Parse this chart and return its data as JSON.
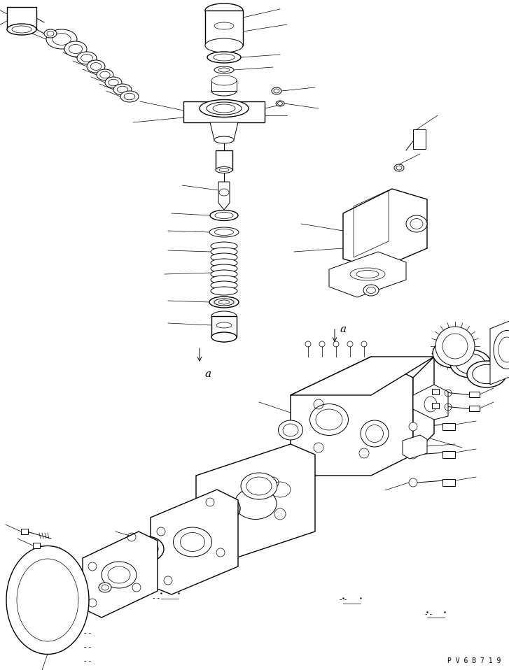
{
  "background_color": "#ffffff",
  "line_color": "#000000",
  "watermark_text": "P V 6 B 7 1 9",
  "fig_width": 7.27,
  "fig_height": 9.58,
  "dpi": 100
}
